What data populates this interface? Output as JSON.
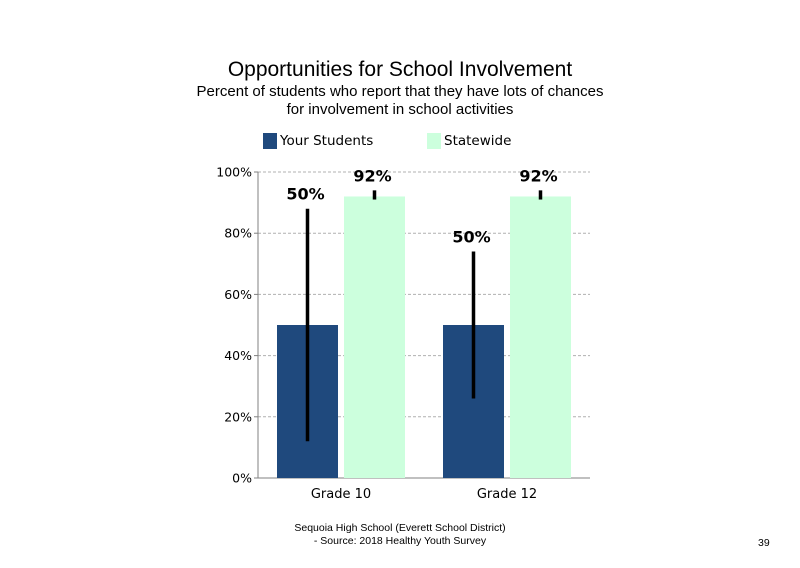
{
  "chart_data": {
    "type": "bar",
    "title": "Opportunities  for School Involvement",
    "subtitle_lines": [
      "Percent of students  who report that they have lots of chances",
      "for involvement  in school activities"
    ],
    "categories": [
      "Grade 10",
      "Grade 12"
    ],
    "series": [
      {
        "name": "Your Students",
        "values": [
          50,
          50
        ],
        "labels": [
          "50%",
          "50%"
        ],
        "error_low": [
          12,
          26
        ],
        "error_high": [
          88,
          74
        ],
        "color": "#1f497d"
      },
      {
        "name": "Statewide",
        "values": [
          92,
          92
        ],
        "labels": [
          "92%",
          "92%"
        ],
        "error_low": [
          91,
          91
        ],
        "error_high": [
          94,
          94
        ],
        "color": "#ccffdd"
      }
    ],
    "ylim": [
      0,
      100
    ],
    "yticks": [
      "0%",
      "20%",
      "40%",
      "60%",
      "80%",
      "100%"
    ],
    "ytick_values": [
      0,
      20,
      40,
      60,
      80,
      100
    ],
    "grid": true,
    "legend_position": "top"
  },
  "footer": {
    "line1": "Sequoia High School (Everett School District)",
    "line2": "- Source: 2018 Healthy  Youth Survey",
    "page_number": "39"
  }
}
